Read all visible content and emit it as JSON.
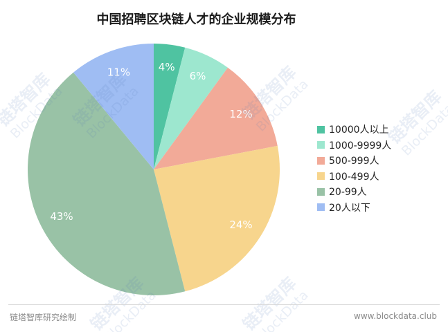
{
  "chart_data": {
    "type": "pie",
    "title": "中国招聘区块链人才的企业规模分布",
    "categories": [
      "10000人以上",
      "1000-9999人",
      "500-999人",
      "100-499人",
      "20-99人",
      "20人以下"
    ],
    "values": [
      4,
      6,
      12,
      24,
      43,
      11
    ],
    "labels": [
      "4%",
      "6%",
      "12%",
      "24%",
      "43%",
      "11%"
    ],
    "colors": [
      "#4fc3a1",
      "#9de7cf",
      "#f2aa98",
      "#f7d58d",
      "#99c2a6",
      "#9fbdf3"
    ],
    "legend_position": "right"
  },
  "footer": {
    "source": "链塔智库研究绘制",
    "website": "www.blockdata.club"
  },
  "watermark": {
    "cn": "链塔智库",
    "en": "BlockData"
  }
}
